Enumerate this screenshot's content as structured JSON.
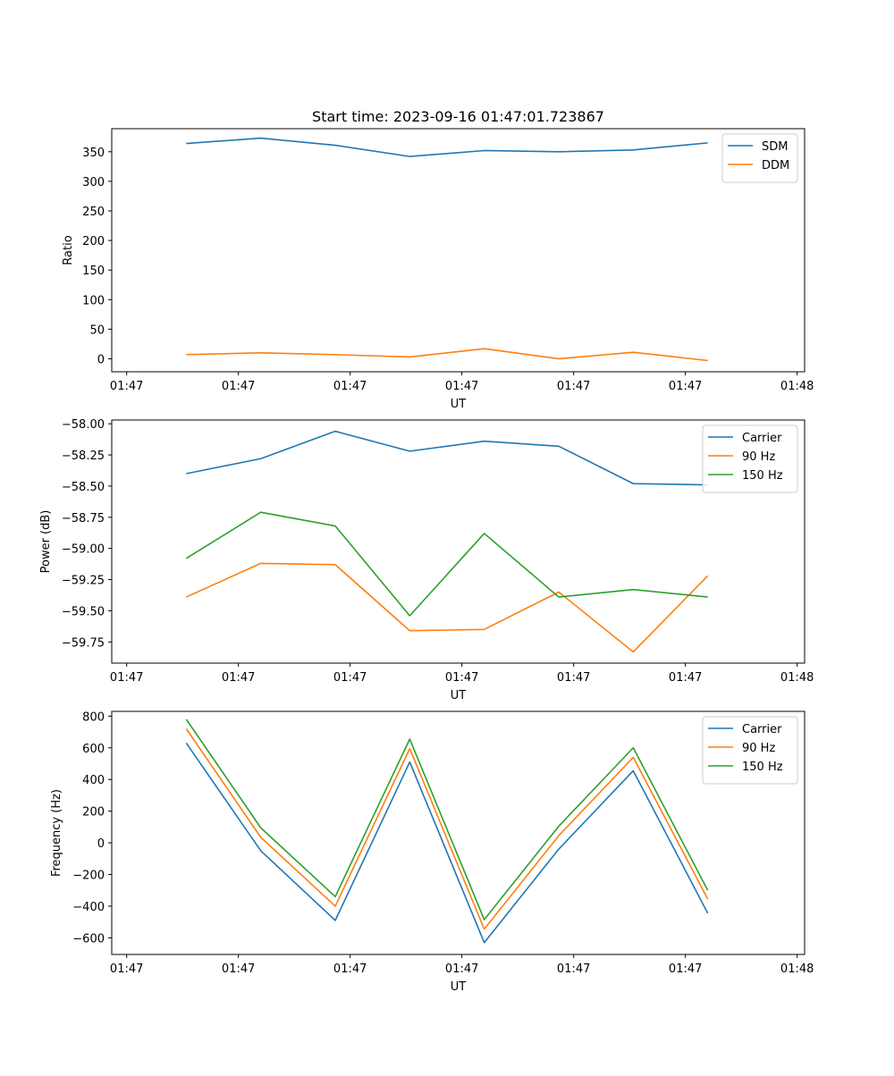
{
  "chart_data": [
    {
      "type": "line",
      "title": "Start time: 2023-09-16 01:47:01.723867",
      "xlabel": "UT",
      "ylabel": "Ratio",
      "xlim": [
        0,
        9.3
      ],
      "ylim": [
        -22,
        389
      ],
      "xticks": [
        0.2,
        1.7,
        3.2,
        4.7,
        6.2,
        7.7,
        9.2
      ],
      "xtick_labels": [
        "01:47",
        "01:47",
        "01:47",
        "01:47",
        "01:47",
        "01:47",
        "01:48"
      ],
      "yticks": [
        0,
        50,
        100,
        150,
        200,
        250,
        300,
        350
      ],
      "ytick_labels": [
        "0",
        "50",
        "100",
        "150",
        "200",
        "250",
        "300",
        "350"
      ],
      "legend_position": "top-right",
      "x": [
        1,
        2,
        3,
        4,
        5,
        6,
        7,
        8
      ],
      "series": [
        {
          "name": "SDM",
          "color": "#1f77b4",
          "values": [
            364,
            373,
            361,
            342,
            352,
            350,
            353,
            365
          ]
        },
        {
          "name": "DDM",
          "color": "#ff7f0e",
          "values": [
            7,
            10,
            7,
            3,
            17,
            0,
            11,
            -3
          ]
        }
      ]
    },
    {
      "type": "line",
      "title": "",
      "xlabel": "UT",
      "ylabel": "Power (dB)",
      "xlim": [
        0,
        9.3
      ],
      "ylim": [
        -59.92,
        -57.97
      ],
      "xticks": [
        0.2,
        1.7,
        3.2,
        4.7,
        6.2,
        7.7,
        9.2
      ],
      "xtick_labels": [
        "01:47",
        "01:47",
        "01:47",
        "01:47",
        "01:47",
        "01:47",
        "01:48"
      ],
      "yticks": [
        -58.0,
        -58.25,
        -58.5,
        -58.75,
        -59.0,
        -59.25,
        -59.5,
        -59.75
      ],
      "ytick_labels": [
        "−58.00",
        "−58.25",
        "−58.50",
        "−58.75",
        "−59.00",
        "−59.25",
        "−59.50",
        "−59.75"
      ],
      "legend_position": "top-right",
      "x": [
        1,
        2,
        3,
        4,
        5,
        6,
        7,
        8
      ],
      "series": [
        {
          "name": "Carrier",
          "color": "#1f77b4",
          "values": [
            -58.4,
            -58.28,
            -58.06,
            -58.22,
            -58.14,
            -58.18,
            -58.48,
            -58.49
          ]
        },
        {
          "name": "90 Hz",
          "color": "#ff7f0e",
          "values": [
            -59.39,
            -59.12,
            -59.13,
            -59.66,
            -59.65,
            -59.35,
            -59.83,
            -59.22
          ]
        },
        {
          "name": "150 Hz",
          "color": "#2ca02c",
          "values": [
            -59.08,
            -58.71,
            -58.82,
            -59.54,
            -58.88,
            -59.39,
            -59.33,
            -59.39
          ]
        }
      ]
    },
    {
      "type": "line",
      "title": "",
      "xlabel": "UT",
      "ylabel": "Frequency (Hz)",
      "xlim": [
        0,
        9.3
      ],
      "ylim": [
        -705,
        830
      ],
      "xticks": [
        0.2,
        1.7,
        3.2,
        4.7,
        6.2,
        7.7,
        9.2
      ],
      "xtick_labels": [
        "01:47",
        "01:47",
        "01:47",
        "01:47",
        "01:47",
        "01:47",
        "01:48"
      ],
      "yticks": [
        800,
        600,
        400,
        200,
        0,
        -200,
        -400,
        -600
      ],
      "ytick_labels": [
        "800",
        "600",
        "400",
        "200",
        "0",
        "−200",
        "−400",
        "−600"
      ],
      "legend_position": "top-right",
      "x": [
        1,
        2,
        3,
        4,
        5,
        6,
        7,
        8
      ],
      "series": [
        {
          "name": "Carrier",
          "color": "#1f77b4",
          "values": [
            630,
            -50,
            -490,
            510,
            -630,
            -40,
            455,
            -445
          ]
        },
        {
          "name": "90 Hz",
          "color": "#ff7f0e",
          "values": [
            720,
            35,
            -400,
            595,
            -545,
            45,
            540,
            -355
          ]
        },
        {
          "name": "150 Hz",
          "color": "#2ca02c",
          "values": [
            780,
            95,
            -340,
            655,
            -485,
            105,
            600,
            -300
          ]
        }
      ]
    }
  ]
}
